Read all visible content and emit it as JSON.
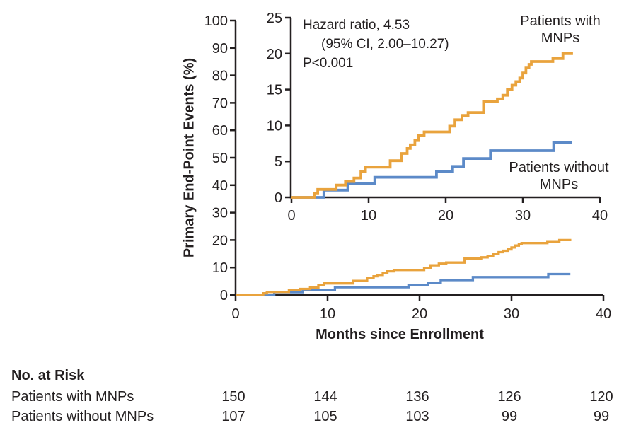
{
  "figure": {
    "background": "#ffffff",
    "text_color": "#231f20"
  },
  "chart_data": {
    "type": "line",
    "subtype": "kaplan-meier-step-curves",
    "title": "",
    "xlabel": "Months since Enrollment",
    "ylabel": "Primary End-Point Events (%)",
    "grid": "off",
    "main_axis": {
      "xlim": [
        0,
        40
      ],
      "ylim": [
        0,
        100
      ],
      "xticks": [
        0,
        10,
        20,
        30,
        40
      ],
      "yticks": [
        0,
        10,
        20,
        30,
        40,
        50,
        60,
        70,
        80,
        90,
        100
      ]
    },
    "inset_axis": {
      "xlim": [
        0,
        40
      ],
      "ylim": [
        0,
        25
      ],
      "xticks": [
        0,
        10,
        20,
        30,
        40
      ],
      "yticks": [
        0,
        5,
        10,
        15,
        20,
        25
      ]
    },
    "annotation": {
      "line1": "Hazard ratio, 4.53",
      "line2": "(95% CI, 2.00–10.27)",
      "line3": "P<0.001"
    },
    "legend": {
      "position": "inline-near-curves",
      "with_mnps": {
        "line1": "Patients with",
        "line2": "MNPs"
      },
      "without_mnps": {
        "line1": "Patients without",
        "line2": "MNPs"
      }
    },
    "series": [
      {
        "id": "with-mnps",
        "name": "Patients with MNPs",
        "color": "#E9A33D",
        "end_x": 36.5,
        "points": [
          [
            0,
            0
          ],
          [
            3,
            0.6
          ],
          [
            3.4,
            1.1
          ],
          [
            5.8,
            1.7
          ],
          [
            7,
            2.2
          ],
          [
            8.1,
            2.7
          ],
          [
            9,
            3.6
          ],
          [
            9.6,
            4.2
          ],
          [
            12.8,
            5.1
          ],
          [
            14.3,
            6.1
          ],
          [
            15,
            6.8
          ],
          [
            15.4,
            7.3
          ],
          [
            16,
            7.9
          ],
          [
            16.5,
            8.6
          ],
          [
            17.2,
            9.1
          ],
          [
            20.5,
            9.9
          ],
          [
            21.2,
            10.8
          ],
          [
            22.1,
            11.4
          ],
          [
            22.9,
            11.8
          ],
          [
            24.9,
            13.3
          ],
          [
            26.7,
            13.7
          ],
          [
            27.4,
            14.2
          ],
          [
            28,
            15
          ],
          [
            28.6,
            15.6
          ],
          [
            29.1,
            16.1
          ],
          [
            29.6,
            16.6
          ],
          [
            30,
            17.3
          ],
          [
            30.4,
            18
          ],
          [
            30.8,
            18.5
          ],
          [
            31.1,
            18.9
          ],
          [
            33.9,
            19.3
          ],
          [
            35.2,
            20
          ]
        ]
      },
      {
        "id": "without-mnps",
        "name": "Patients without MNPs",
        "color": "#5C8AC8",
        "end_x": 36.4,
        "points": [
          [
            0,
            0
          ],
          [
            4.2,
            1
          ],
          [
            7.3,
            1.9
          ],
          [
            10.8,
            2.8
          ],
          [
            18.8,
            3.6
          ],
          [
            20.9,
            4.3
          ],
          [
            22.3,
            5.4
          ],
          [
            25.8,
            6.5
          ],
          [
            34,
            7.6
          ]
        ]
      }
    ]
  },
  "risk_table": {
    "title": "No. at Risk",
    "time_points": [
      0,
      10,
      20,
      30,
      40
    ],
    "rows": [
      {
        "label": "Patients with MNPs",
        "counts": [
          "150",
          "144",
          "136",
          "126",
          "120"
        ]
      },
      {
        "label": "Patients without MNPs",
        "counts": [
          "107",
          "105",
          "103",
          "99",
          "99"
        ]
      }
    ]
  }
}
